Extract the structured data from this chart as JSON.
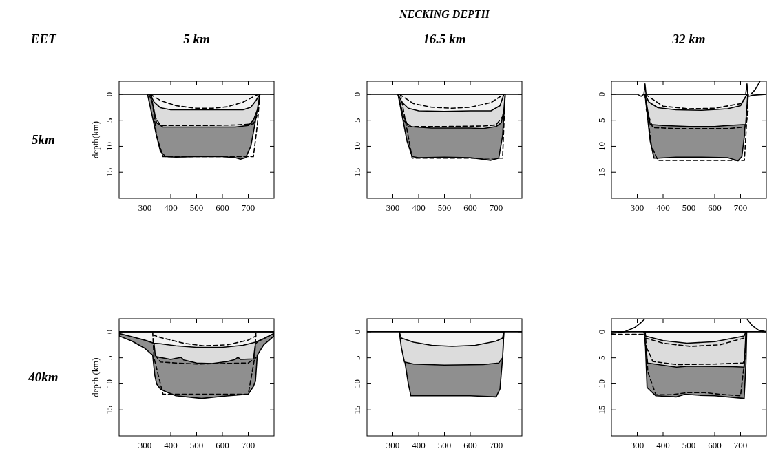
{
  "chart_data": [
    {
      "type": "area",
      "title": "5 km",
      "ylabel": "depth(km)",
      "annotations": [
        "EET",
        "5km"
      ],
      "xlim": [
        200,
        800
      ],
      "ylim": [
        20,
        -2.5
      ],
      "xticks": [
        300,
        400,
        500,
        600,
        700
      ],
      "yticks": [
        0,
        5,
        10,
        15
      ],
      "series": [
        {
          "color": "#8f8f8f",
          "x": [
            310,
            325,
            335,
            345,
            360,
            380,
            420,
            500,
            600,
            650,
            670,
            690,
            710,
            725,
            735,
            745
          ],
          "values": [
            0,
            null,
            null,
            8,
            11,
            12,
            12.1,
            12,
            12,
            12.2,
            12.5,
            12.2,
            10,
            6,
            null,
            0
          ]
        },
        {
          "color": "#dcdcdc",
          "x": [
            315,
            325,
            335,
            345,
            370,
            500,
            650,
            700,
            720,
            735,
            745
          ],
          "values": [
            0,
            1,
            3,
            5.5,
            6.3,
            6.3,
            6.3,
            6,
            5,
            3,
            0
          ]
        },
        {
          "color": "#f3f3f3",
          "x": [
            320,
            335,
            360,
            400,
            500,
            600,
            680,
            710,
            730,
            745
          ],
          "values": [
            0,
            1.5,
            2.6,
            3,
            3,
            3,
            3,
            2.5,
            1.2,
            0
          ]
        },
        {
          "type": "line",
          "color": "#000000",
          "line_style": "dashed",
          "x": [
            320,
            360,
            420,
            500,
            560,
            620,
            680,
            740
          ],
          "values": [
            0,
            1.2,
            2.2,
            2.7,
            2.7,
            2.4,
            1.5,
            0
          ]
        },
        {
          "type": "line",
          "color": "#000000",
          "line_style": "dashed",
          "x": [
            335,
            360,
            450,
            550,
            650,
            720,
            735
          ],
          "values": [
            4,
            6,
            6,
            6,
            5.9,
            5.7,
            4
          ]
        },
        {
          "type": "line",
          "color": "#000000",
          "line_style": "dashed",
          "x": [
            325,
            345,
            370,
            720,
            735,
            745
          ],
          "values": [
            0,
            8,
            12,
            12,
            6,
            0
          ]
        },
        {
          "type": "line",
          "color": "#000000",
          "line_style": "solid",
          "x": [
            200,
            800
          ],
          "values": [
            0,
            0
          ]
        }
      ]
    },
    {
      "type": "area",
      "title": "16.5 km",
      "annotations": [
        "NECKING DEPTH"
      ],
      "xlim": [
        200,
        800
      ],
      "ylim": [
        20,
        -2.5
      ],
      "xticks": [
        300,
        400,
        500,
        600,
        700
      ],
      "yticks": [
        0,
        5,
        10,
        15
      ],
      "series": [
        {
          "color": "#8f8f8f",
          "x": [
            320,
            330,
            340,
            355,
            375,
            400,
            500,
            600,
            650,
            680,
            710,
            725,
            735
          ],
          "values": [
            0,
            null,
            null,
            9,
            12,
            12.2,
            12.1,
            12.2,
            12.5,
            12.7,
            12.3,
            8,
            0
          ]
        },
        {
          "color": "#dcdcdc",
          "x": [
            320,
            330,
            340,
            360,
            450,
            600,
            650,
            700,
            720,
            730,
            735
          ],
          "values": [
            0,
            null,
            4,
            6.2,
            6.5,
            6.5,
            6.6,
            6.2,
            5.5,
            3,
            0
          ]
        },
        {
          "color": "#f3f3f3",
          "x": [
            320,
            335,
            360,
            400,
            500,
            600,
            680,
            715,
            730
          ],
          "values": [
            0,
            1.5,
            2.7,
            3.2,
            3.3,
            3.2,
            3.2,
            2.2,
            0
          ]
        },
        {
          "type": "line",
          "color": "#000000",
          "line_style": "dashed",
          "x": [
            325,
            380,
            450,
            530,
            600,
            680,
            730
          ],
          "values": [
            0,
            1.8,
            2.5,
            2.7,
            2.5,
            1.6,
            0
          ]
        },
        {
          "type": "line",
          "color": "#000000",
          "line_style": "dashed",
          "x": [
            340,
            370,
            500,
            650,
            700,
            730
          ],
          "values": [
            5,
            6.2,
            6.2,
            6.1,
            5.9,
            4
          ]
        },
        {
          "type": "line",
          "color": "#000000",
          "line_style": "dashed",
          "x": [
            330,
            375,
            700,
            725,
            735
          ],
          "values": [
            0,
            12.3,
            12.3,
            12.3,
            0
          ]
        },
        {
          "type": "line",
          "color": "#000000",
          "line_style": "solid",
          "x": [
            200,
            800
          ],
          "values": [
            0,
            0
          ]
        }
      ]
    },
    {
      "type": "area",
      "title": "32 km",
      "xlim": [
        200,
        800
      ],
      "ylim": [
        20,
        -2.5
      ],
      "xticks": [
        300,
        400,
        500,
        600,
        700
      ],
      "yticks": [
        0,
        5,
        10,
        15
      ],
      "series": [
        {
          "color": "#8f8f8f",
          "x": [
            330,
            340,
            350,
            365,
            380,
            450,
            550,
            650,
            690,
            705,
            715,
            725
          ],
          "values": [
            0,
            null,
            9,
            12.3,
            12.3,
            12.1,
            12.1,
            12.2,
            12.8,
            12,
            8,
            0
          ]
        },
        {
          "color": "#dcdcdc",
          "x": [
            330,
            340,
            350,
            400,
            500,
            600,
            650,
            720,
            728
          ],
          "values": [
            0,
            3,
            5.8,
            6,
            6.2,
            6.2,
            6,
            5.8,
            0
          ]
        },
        {
          "color": "#f3f3f3",
          "x": [
            330,
            345,
            380,
            450,
            550,
            650,
            700,
            725
          ],
          "values": [
            0,
            1.5,
            2.6,
            3,
            3.1,
            2.8,
            2.2,
            0
          ]
        },
        {
          "type": "line",
          "color": "#000000",
          "line_style": "dashed",
          "x": [
            330,
            400,
            500,
            600,
            700,
            730
          ],
          "values": [
            0,
            2.3,
            2.8,
            2.7,
            1.8,
            0
          ]
        },
        {
          "type": "line",
          "color": "#000000",
          "line_style": "dashed",
          "x": [
            335,
            360,
            450,
            650,
            720,
            730
          ],
          "values": [
            3,
            6.4,
            6.6,
            6.6,
            6.3,
            3
          ]
        },
        {
          "type": "line",
          "color": "#000000",
          "line_style": "dashed",
          "x": [
            330,
            355,
            380,
            700,
            715,
            730
          ],
          "values": [
            0,
            10,
            12.7,
            12.7,
            12.7,
            0
          ]
        },
        {
          "type": "line",
          "color": "#000000",
          "line_style": "solid",
          "x": [
            200,
            300,
            315,
            326,
            330,
            334,
            340,
            720,
            725,
            728,
            732,
            745,
            800
          ],
          "values": [
            0,
            0,
            0.4,
            0,
            -2,
            0,
            0,
            0,
            -2,
            0,
            0.4,
            0.2,
            0
          ]
        },
        {
          "type": "line",
          "color": "#000000",
          "line_style": "solid",
          "x": [
            740,
            755,
            765,
            775
          ],
          "values": [
            0,
            -0.8,
            -1.6,
            -2.5
          ]
        }
      ]
    },
    {
      "type": "area",
      "ylabel": "depth (km)",
      "annotations": [
        "40km"
      ],
      "xlim": [
        200,
        800
      ],
      "ylim": [
        20,
        -2.5
      ],
      "xticks": [
        300,
        400,
        500,
        600,
        700
      ],
      "yticks": [
        0,
        5,
        10,
        15
      ],
      "series": [
        {
          "color": "#8f8f8f",
          "x": [
            200,
            250,
            300,
            330,
            338,
            345,
            360,
            380,
            420,
            520,
            600,
            650,
            700,
            720,
            728,
            735,
            760,
            800
          ],
          "values": [
            0.8,
            1.8,
            3.2,
            4.5,
            8.3,
            10,
            11,
            11.5,
            12.3,
            12.8,
            12.4,
            12.2,
            12,
            10.5,
            9.5,
            4.5,
            2.5,
            0.8
          ]
        },
        {
          "color": "#dcdcdc",
          "x": [
            200,
            250,
            300,
            335,
            340,
            345,
            400,
            440,
            450,
            500,
            560,
            620,
            650,
            660,
            670,
            720,
            728,
            740,
            780,
            800
          ],
          "values": [
            0.3,
            0.9,
            1.6,
            2.2,
            4.5,
            4.8,
            5.3,
            4.9,
            5.4,
            6,
            6.1,
            5.7,
            5.3,
            4.9,
            5.3,
            5.2,
            2.3,
            1.8,
            0.8,
            0.3
          ]
        },
        {
          "color": "#f3f3f3",
          "x": [
            200,
            300,
            335,
            360,
            420,
            500,
            600,
            680,
            728,
            760,
            800
          ],
          "values": [
            0.3,
            1.6,
            2.2,
            2.3,
            2.7,
            3,
            3,
            2.6,
            2,
            1.3,
            0.3
          ]
        },
        {
          "type": "line",
          "color": "#000000",
          "line_style": "dashed",
          "x": [
            330,
            360,
            450,
            530,
            620,
            700,
            730
          ],
          "values": [
            0.6,
            1.1,
            2.2,
            2.7,
            2.5,
            1.6,
            0.8
          ]
        },
        {
          "type": "line",
          "color": "#000000",
          "line_style": "dashed",
          "x": [
            340,
            360,
            420,
            500,
            600,
            700,
            730
          ],
          "values": [
            4.5,
            5.8,
            6,
            6.2,
            6.1,
            6,
            5
          ]
        },
        {
          "type": "line",
          "color": "#000000",
          "line_style": "dashed",
          "x": [
            330,
            335,
            370,
            700,
            725,
            730
          ],
          "values": [
            0,
            5,
            12,
            12,
            5,
            0
          ]
        },
        {
          "type": "line",
          "color": "#000000",
          "line_style": "solid",
          "x": [
            200,
            800
          ],
          "values": [
            0,
            0
          ]
        }
      ]
    },
    {
      "type": "area",
      "xlim": [
        200,
        800
      ],
      "ylim": [
        20,
        -2.5
      ],
      "xticks": [
        300,
        400,
        500,
        600,
        700
      ],
      "yticks": [
        0,
        5,
        10,
        15
      ],
      "series": [
        {
          "color": "#8f8f8f",
          "x": [
            325,
            330,
            345,
            360,
            370,
            500,
            600,
            700,
            715,
            725,
            730
          ],
          "values": [
            0,
            0.5,
            null,
            10,
            12.3,
            12.3,
            12.3,
            12.5,
            11,
            5,
            0
          ]
        },
        {
          "color": "#dcdcdc",
          "x": [
            325,
            333,
            345,
            380,
            500,
            650,
            710,
            725,
            730
          ],
          "values": [
            0,
            3,
            5.8,
            6.2,
            6.4,
            6.3,
            6,
            5,
            0
          ]
        },
        {
          "color": "#f3f3f3",
          "x": [
            325,
            333,
            380,
            450,
            530,
            620,
            700,
            725,
            730
          ],
          "values": [
            0,
            1.2,
            2,
            2.6,
            2.8,
            2.6,
            1.8,
            1.2,
            0
          ]
        },
        {
          "type": "line",
          "color": "#000000",
          "line_style": "solid",
          "x": [
            200,
            800
          ],
          "values": [
            0,
            0
          ]
        }
      ]
    },
    {
      "type": "area",
      "xlim": [
        200,
        800
      ],
      "ylim": [
        20,
        -2.5
      ],
      "xticks": [
        300,
        400,
        500,
        600,
        700
      ],
      "yticks": [
        0,
        5,
        10,
        15
      ],
      "series": [
        {
          "color": "#8f8f8f",
          "x": [
            326,
            330,
            338,
            372,
            452,
            486,
            540,
            600,
            714,
            721,
            724
          ],
          "values": [
            0,
            0.5,
            10.7,
            12.3,
            12.5,
            12,
            12.2,
            12.3,
            12.8,
            6,
            0
          ]
        },
        {
          "color": "#dcdcdc",
          "x": [
            326,
            333,
            340,
            410,
            452,
            500,
            669,
            714,
            721
          ],
          "values": [
            0,
            3,
            6,
            6.5,
            6.8,
            6.6,
            6.7,
            6.8,
            0
          ]
        },
        {
          "color": "#f3f3f3",
          "x": [
            326,
            331,
            400,
            493,
            600,
            714,
            721
          ],
          "values": [
            0,
            0.8,
            1.7,
            2.2,
            1.9,
            0.8,
            0
          ]
        },
        {
          "type": "line",
          "color": "#000000",
          "line_style": "dashed",
          "x": [
            331,
            400,
            507,
            620,
            714
          ],
          "values": [
            1.2,
            2.2,
            2.8,
            2.5,
            1.2
          ]
        },
        {
          "type": "line",
          "color": "#000000",
          "line_style": "dashed",
          "x": [
            335,
            350,
            360,
            452,
            600,
            710,
            718
          ],
          "values": [
            3,
            4.5,
            5.7,
            6.3,
            6.2,
            6,
            5.2
          ]
        },
        {
          "type": "line",
          "color": "#000000",
          "line_style": "dashed",
          "x": [
            331,
            341,
            372,
            430,
            493,
            562,
            620,
            700,
            717,
            722
          ],
          "values": [
            0,
            7.7,
            12.1,
            12.1,
            11.7,
            11.7,
            12,
            12.3,
            5,
            0
          ]
        },
        {
          "type": "line",
          "color": "#000000",
          "line_style": "dashed",
          "x": [
            200,
            330
          ],
          "values": [
            0.5,
            0.5
          ]
        },
        {
          "type": "line",
          "color": "#000000",
          "line_style": "solid",
          "x": [
            200,
            800
          ],
          "values": [
            0,
            0
          ]
        },
        {
          "type": "line",
          "color": "#000000",
          "line_style": "solid",
          "x": [
            200,
            250,
            290,
            315,
            330
          ],
          "values": [
            0.3,
            0,
            -0.8,
            -1.8,
            -2.5
          ]
        },
        {
          "type": "line",
          "color": "#000000",
          "line_style": "solid",
          "x": [
            724,
            745,
            770,
            800
          ],
          "values": [
            -2.5,
            -1.2,
            -0.3,
            0
          ]
        }
      ]
    }
  ]
}
